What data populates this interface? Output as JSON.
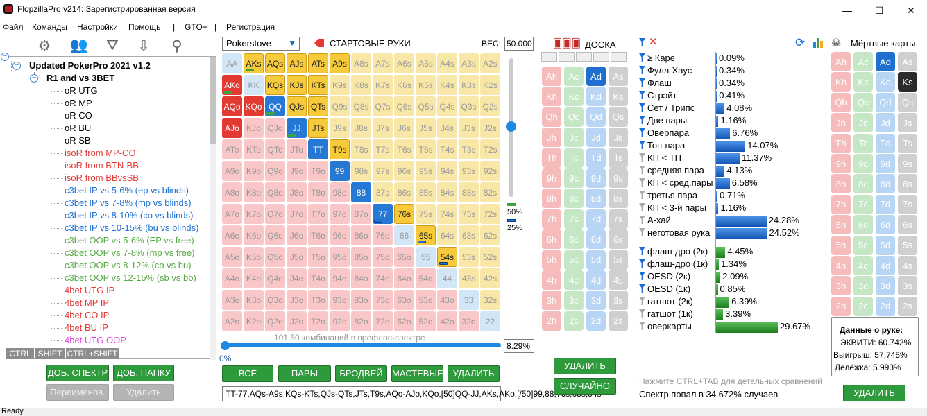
{
  "window": {
    "title": "FlopzillaPro v214: Зарегистрированная версия",
    "min": "—",
    "max": "☐",
    "close": "✕"
  },
  "menu": [
    "Файл",
    "Команды",
    "Настройки",
    "Помощь",
    "|",
    "GTO+",
    "|",
    "Регистрация"
  ],
  "tree": {
    "root": "Updated PokerPro 2021 v1.2",
    "group": "R1 and vs 3BET",
    "items": [
      {
        "label": "oR UTG",
        "color": "#000000"
      },
      {
        "label": "oR MP",
        "color": "#000000"
      },
      {
        "label": "oR CO",
        "color": "#000000"
      },
      {
        "label": "oR BU",
        "color": "#000000"
      },
      {
        "label": "oR SB",
        "color": "#000000"
      },
      {
        "label": "isoR from MP-CO",
        "color": "#e53935"
      },
      {
        "label": "isoR from BTN-BB",
        "color": "#e53935"
      },
      {
        "label": "isoR from BBvsSB",
        "color": "#e53935"
      },
      {
        "label": "c3bet IP vs 5-6% (ep vs blinds)",
        "color": "#1e6fd0"
      },
      {
        "label": "c3bet IP vs 7-8% (mp vs blinds)",
        "color": "#1e6fd0"
      },
      {
        "label": "c3bet IP vs 8-10% (co vs blinds)",
        "color": "#1e6fd0"
      },
      {
        "label": "c3bet IP vs 10-15% (bu vs blinds)",
        "color": "#1e6fd0"
      },
      {
        "label": "c3bet OOP vs 5-6% (EP vs free)",
        "color": "#57a846"
      },
      {
        "label": "c3bet OOP vs 7-8% (mp vs free)",
        "color": "#57a846"
      },
      {
        "label": "c3bet OOP vs 8-12% (co vs bu)",
        "color": "#57a846"
      },
      {
        "label": "c3bet OOP vs 12-15% (sb vs bb)",
        "color": "#57a846"
      },
      {
        "label": "4bet UTG IP",
        "color": "#e53935"
      },
      {
        "label": "4bet MP IP",
        "color": "#e53935"
      },
      {
        "label": "4bet CO IP",
        "color": "#e53935"
      },
      {
        "label": "4bet BU IP",
        "color": "#e53935"
      },
      {
        "label": "4bet UTG OOP",
        "color": "#e040e0"
      }
    ]
  },
  "keys": {
    "ctrl": "CTRL",
    "shift": "SHIFT",
    "ctrlshift": "CTRL+SHIFT"
  },
  "leftbuttons": {
    "add_range": "ДОБ. СПЕКТР",
    "add_folder": "ДОБ. ПАПКУ",
    "rename": "Переименов.",
    "delete": "Удалить"
  },
  "range": {
    "source": "Pokerstove",
    "header": "СТАРТОВЫЕ РУКИ",
    "weight_label": "ВЕС:",
    "weight_value": "50.000",
    "combos_text": "101.50 комбинаций в префлоп-спектре",
    "slider_min": "0%",
    "percent": "8.29%",
    "pct50": "50%",
    "pct25": "25%",
    "field": "TT-77,AQs-A9s,KQs-KTs,QJs-QTs,JTs,T9s,AQo-AJo,KQo,[50]QQ-JJ,AKs,AKo,[/50]99,88,76s,65s,54s",
    "buttons": {
      "all": "ВСЁ",
      "pairs": "ПАРЫ",
      "broadway": "БРОДВЕЙ",
      "suited": "МАСТЕВЫЕ",
      "delete": "УДАЛИТЬ"
    },
    "selected_hands": [
      "AKs",
      "AQs",
      "AJs",
      "ATs",
      "A9s",
      "AKo",
      "KQs",
      "KJs",
      "KTs",
      "AQo",
      "KQo",
      "QQ",
      "QJs",
      "QTs",
      "AJo",
      "JJ",
      "JTs",
      "TT",
      "T9s",
      "99",
      "88",
      "77",
      "76s",
      "65s",
      "54s"
    ],
    "half_weight_hands": [
      "AKs",
      "AKo",
      "QQ",
      "JJ"
    ],
    "partial_hands": [
      "77",
      "65s",
      "54s"
    ]
  },
  "board": {
    "title": "ДОСКА",
    "ranks": [
      "A",
      "K",
      "Q",
      "J",
      "T",
      "9",
      "8",
      "7",
      "6",
      "5",
      "4",
      "3",
      "2"
    ],
    "suits": [
      "h",
      "c",
      "d",
      "s"
    ],
    "selected": [
      "Ad"
    ],
    "buttons": {
      "delete": "УДАЛИТЬ",
      "random": "СЛУЧАЙНО"
    }
  },
  "stats": {
    "rows": [
      {
        "label": "≥ Каре",
        "value": "0.09%",
        "pct": 0.09,
        "icon": "blue"
      },
      {
        "label": "Фулл-Хаус",
        "value": "0.34%",
        "pct": 0.34,
        "icon": "blue"
      },
      {
        "label": "Флаш",
        "value": "0.34%",
        "pct": 0.34,
        "icon": "blue"
      },
      {
        "label": "Стрэйт",
        "value": "0.41%",
        "pct": 0.41,
        "icon": "blue"
      },
      {
        "label": "Сет / Трипс",
        "value": "4.08%",
        "pct": 4.08,
        "icon": "blue"
      },
      {
        "label": "Две пары",
        "value": "1.16%",
        "pct": 1.16,
        "icon": "blue"
      },
      {
        "label": "Оверпара",
        "value": "6.76%",
        "pct": 6.76,
        "icon": "blue"
      },
      {
        "label": "Топ-пара",
        "value": "14.07%",
        "pct": 14.07,
        "icon": "blue"
      },
      {
        "label": "КП < ТП",
        "value": "11.37%",
        "pct": 11.37,
        "icon": "gray"
      },
      {
        "label": "средняя пара",
        "value": "4.13%",
        "pct": 4.13,
        "icon": "gray"
      },
      {
        "label": "КП < сред.пары",
        "value": "6.58%",
        "pct": 6.58,
        "icon": "gray"
      },
      {
        "label": "третья пара",
        "value": "0.71%",
        "pct": 0.71,
        "icon": "gray"
      },
      {
        "label": "КП < 3-й пары",
        "value": "1.16%",
        "pct": 1.16,
        "icon": "gray"
      },
      {
        "label": "А-хай",
        "value": "24.28%",
        "pct": 24.28,
        "icon": "gray"
      },
      {
        "label": "неготовая рука",
        "value": "24.52%",
        "pct": 24.52,
        "icon": "gray"
      }
    ],
    "draws": [
      {
        "label": "флаш-дро (2к)",
        "value": "4.45%",
        "pct": 4.45,
        "icon": "blue"
      },
      {
        "label": "флаш-дро (1к)",
        "value": "1.34%",
        "pct": 1.34,
        "icon": "blue"
      },
      {
        "label": "OESD (2к)",
        "value": "2.09%",
        "pct": 2.09,
        "icon": "blue"
      },
      {
        "label": "OESD (1к)",
        "value": "0.85%",
        "pct": 0.85,
        "icon": "blue"
      },
      {
        "label": "гатшот (2к)",
        "value": "6.39%",
        "pct": 6.39,
        "icon": "gray"
      },
      {
        "label": "гатшот (1к)",
        "value": "3.39%",
        "pct": 3.39,
        "icon": "gray"
      },
      {
        "label": "оверкарты",
        "value": "29.67%",
        "pct": 29.67,
        "icon": "gray"
      }
    ],
    "hint": "Нажмите CTRL+TAB для детальных сравнений",
    "summary": "Спектр попал в 34.672% случаев"
  },
  "dead": {
    "title": "Мёртвые карты",
    "selected": [
      "Ad",
      "Ks"
    ],
    "delete": "УДАЛИТЬ"
  },
  "equity": {
    "title": "Данные о руке:",
    "equity": "ЭКВИТИ: 60.742%",
    "win": "Выигрыш: 57.745%",
    "tie": "Делёжка: 5.993%"
  },
  "status": "Ready",
  "colors": {
    "green": "#2e9a3c",
    "blue": "#1f6fd1",
    "red": "#e23a32",
    "yellow": "#f6ca3a"
  }
}
